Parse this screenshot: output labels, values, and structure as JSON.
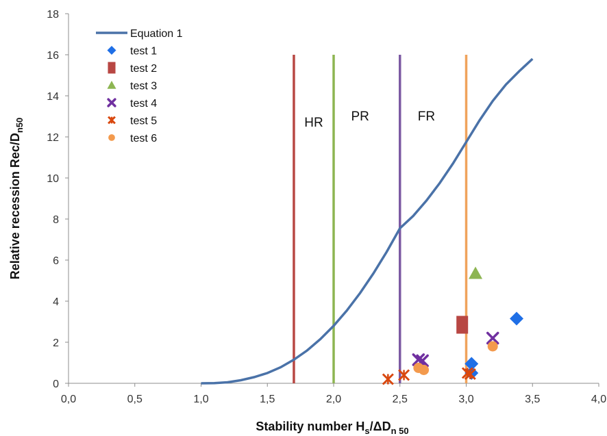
{
  "chart_data": {
    "type": "scatter",
    "xlabel_main": "Stability number H",
    "xlabel_sub1": "s",
    "xlabel_mid": "/ΔD",
    "xlabel_sub2": "n 50",
    "ylabel_main": "Relative recession Rec/D",
    "ylabel_sub": "n50",
    "xlim": [
      0,
      4
    ],
    "ylim": [
      0,
      18
    ],
    "x_ticks": [
      "0,0",
      "0,5",
      "1,0",
      "1,5",
      "2,0",
      "2,5",
      "3,0",
      "3,5",
      "4,0"
    ],
    "y_ticks": [
      "0",
      "2",
      "4",
      "6",
      "8",
      "10",
      "12",
      "14",
      "16",
      "18"
    ],
    "grid": false,
    "legend_position": "top-left",
    "curve": {
      "name": "Equation 1",
      "color": "#4a72a8",
      "points": [
        [
          1.0,
          0.0
        ],
        [
          1.1,
          0.01
        ],
        [
          1.2,
          0.05
        ],
        [
          1.3,
          0.15
        ],
        [
          1.4,
          0.3
        ],
        [
          1.5,
          0.5
        ],
        [
          1.6,
          0.78
        ],
        [
          1.7,
          1.15
        ],
        [
          1.8,
          1.6
        ],
        [
          1.9,
          2.15
        ],
        [
          2.0,
          2.8
        ],
        [
          2.1,
          3.55
        ],
        [
          2.2,
          4.4
        ],
        [
          2.3,
          5.35
        ],
        [
          2.4,
          6.4
        ],
        [
          2.5,
          7.55
        ],
        [
          2.6,
          8.15
        ],
        [
          2.7,
          8.9
        ],
        [
          2.8,
          9.75
        ],
        [
          2.9,
          10.7
        ],
        [
          3.0,
          11.75
        ],
        [
          3.1,
          12.8
        ],
        [
          3.2,
          13.75
        ],
        [
          3.3,
          14.55
        ],
        [
          3.4,
          15.2
        ],
        [
          3.5,
          15.8
        ]
      ]
    },
    "vertical_lines": [
      {
        "x": 1.7,
        "ymax": 16,
        "color": "#b84743"
      },
      {
        "x": 2.0,
        "ymax": 16,
        "color": "#8db552"
      },
      {
        "x": 2.5,
        "ymax": 16,
        "color": "#7c5aa3"
      },
      {
        "x": 3.0,
        "ymax": 16,
        "color": "#f0a35c"
      }
    ],
    "regions": [
      {
        "label": "HR",
        "x": 1.85,
        "y": 12.5
      },
      {
        "label": "PR",
        "x": 2.2,
        "y": 12.8
      },
      {
        "label": "FR",
        "x": 2.7,
        "y": 12.8
      }
    ],
    "series": [
      {
        "name": "test 1",
        "marker": "diamond",
        "color": "#1f6fe6",
        "points": [
          [
            3.38,
            3.15
          ],
          [
            3.04,
            0.95
          ],
          [
            3.04,
            0.5
          ]
        ]
      },
      {
        "name": "test 2",
        "marker": "square",
        "color": "#b84743",
        "points": [
          [
            2.97,
            2.85
          ]
        ]
      },
      {
        "name": "test 3",
        "marker": "triangle",
        "color": "#8db552",
        "points": [
          [
            3.07,
            5.35
          ]
        ]
      },
      {
        "name": "test 4",
        "marker": "x",
        "color": "#7030a0",
        "points": [
          [
            2.64,
            1.15
          ],
          [
            2.67,
            1.1
          ],
          [
            3.2,
            2.2
          ]
        ]
      },
      {
        "name": "test 5",
        "marker": "star",
        "color": "#d9480f",
        "points": [
          [
            2.41,
            0.2
          ],
          [
            2.53,
            0.4
          ],
          [
            3.01,
            0.5
          ],
          [
            3.03,
            0.45
          ]
        ]
      },
      {
        "name": "test 6",
        "marker": "circle",
        "color": "#f39a4d",
        "points": [
          [
            2.64,
            0.75
          ],
          [
            2.68,
            0.65
          ],
          [
            3.2,
            1.8
          ]
        ]
      }
    ]
  }
}
